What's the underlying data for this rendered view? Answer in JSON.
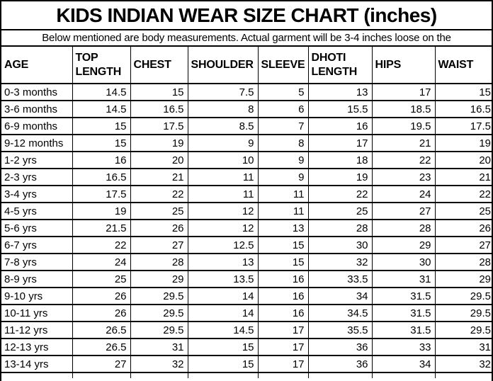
{
  "title": "KIDS INDIAN WEAR SIZE CHART (inches)",
  "subtitle": "Below mentioned are body measurements. Actual garment will be 3-4 inches loose on the",
  "colors": {
    "background": "#ffffff",
    "text": "#000000",
    "grid_border": "#000000"
  },
  "chart_data": {
    "type": "table",
    "title": "KIDS INDIAN WEAR SIZE CHART (inches)",
    "note": "Below mentioned are body measurements. Actual garment will be 3-4 inches loose on the",
    "unit": "inches",
    "columns": [
      "AGE",
      "TOP LENGTH",
      "CHEST",
      "SHOULDER",
      "SLEEVE",
      "DHOTI LENGTH",
      "HIPS",
      "WAIST"
    ],
    "rows": [
      [
        "0-3 months",
        "14.5",
        "15",
        "7.5",
        "5",
        "13",
        "17",
        "15"
      ],
      [
        "3-6 months",
        "14.5",
        "16.5",
        "8",
        "6",
        "15.5",
        "18.5",
        "16.5"
      ],
      [
        "6-9 months",
        "15",
        "17.5",
        "8.5",
        "7",
        "16",
        "19.5",
        "17.5"
      ],
      [
        "9-12 months",
        "15",
        "19",
        "9",
        "8",
        "17",
        "21",
        "19"
      ],
      [
        "1-2 yrs",
        "16",
        "20",
        "10",
        "9",
        "18",
        "22",
        "20"
      ],
      [
        "2-3 yrs",
        "16.5",
        "21",
        "11",
        "9",
        "19",
        "23",
        "21"
      ],
      [
        "3-4 yrs",
        "17.5",
        "22",
        "11",
        "11",
        "22",
        "24",
        "22"
      ],
      [
        "4-5 yrs",
        "19",
        "25",
        "12",
        "11",
        "25",
        "27",
        "25"
      ],
      [
        "5-6 yrs",
        "21.5",
        "26",
        "12",
        "13",
        "28",
        "28",
        "26"
      ],
      [
        "6-7 yrs",
        "22",
        "27",
        "12.5",
        "15",
        "30",
        "29",
        "27"
      ],
      [
        "7-8 yrs",
        "24",
        "28",
        "13",
        "15",
        "32",
        "30",
        "28"
      ],
      [
        "8-9 yrs",
        "25",
        "29",
        "13.5",
        "16",
        "33.5",
        "31",
        "29"
      ],
      [
        "9-10 yrs",
        "26",
        "29.5",
        "14",
        "16",
        "34",
        "31.5",
        "29.5"
      ],
      [
        "10-11 yrs",
        "26",
        "29.5",
        "14",
        "16",
        "34.5",
        "31.5",
        "29.5"
      ],
      [
        "11-12 yrs",
        "26.5",
        "29.5",
        "14.5",
        "17",
        "35.5",
        "31.5",
        "29.5"
      ],
      [
        "12-13 yrs",
        "26.5",
        "31",
        "15",
        "17",
        "36",
        "33",
        "31"
      ],
      [
        "13-14 yrs",
        "27",
        "32",
        "15",
        "17",
        "36",
        "34",
        "32"
      ]
    ]
  }
}
